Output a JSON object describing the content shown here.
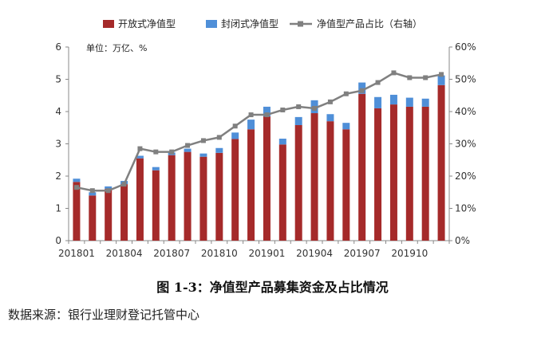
{
  "chart_data": {
    "type": "bar",
    "stacked": true,
    "unit_label": "单位：万亿、%",
    "x": [
      "201801",
      "201802",
      "201803",
      "201804",
      "201805",
      "201806",
      "201807",
      "201808",
      "201809",
      "201810",
      "201811",
      "201812",
      "201901",
      "201902",
      "201903",
      "201904",
      "201905",
      "201906",
      "201907",
      "201908",
      "201909",
      "201910",
      "201911",
      "201912"
    ],
    "xtick_labels": [
      "201801",
      "201804",
      "201807",
      "201810",
      "201901",
      "201904",
      "201907",
      "201910"
    ],
    "series": [
      {
        "name": "开放式净值型",
        "axis": "left",
        "color": "#A52A2A",
        "values": [
          1.82,
          1.4,
          1.6,
          1.75,
          2.55,
          2.18,
          2.65,
          2.75,
          2.6,
          2.72,
          3.15,
          3.45,
          3.85,
          2.98,
          3.58,
          3.95,
          3.7,
          3.45,
          4.55,
          4.1,
          4.22,
          4.15,
          4.15,
          4.82
        ]
      },
      {
        "name": "封闭式净值型",
        "axis": "left",
        "color": "#4F8FD8",
        "values": [
          0.1,
          0.1,
          0.08,
          0.1,
          0.08,
          0.1,
          0.08,
          0.1,
          0.1,
          0.15,
          0.2,
          0.3,
          0.3,
          0.18,
          0.25,
          0.4,
          0.22,
          0.2,
          0.35,
          0.35,
          0.3,
          0.28,
          0.25,
          0.3
        ]
      },
      {
        "name": "净值型产品占比（右轴）",
        "axis": "right",
        "type": "line",
        "color": "#808080",
        "values": [
          16.5,
          15.5,
          15.5,
          17.5,
          28.5,
          27.5,
          27.5,
          29.5,
          31.0,
          32.0,
          35.5,
          39.0,
          39.0,
          40.5,
          41.5,
          41.0,
          43.0,
          45.5,
          46.5,
          49.0,
          52.0,
          50.5,
          50.5,
          51.5
        ]
      }
    ],
    "ylim_left": [
      0,
      6
    ],
    "yticks_left": [
      "0",
      "1",
      "2",
      "3",
      "4",
      "5",
      "6"
    ],
    "ylim_right": [
      0,
      60
    ],
    "yticks_right": [
      "0%",
      "10%",
      "20%",
      "30%",
      "40%",
      "50%",
      "60%"
    ],
    "grid": false,
    "legend_position": "top"
  },
  "caption": "图 1-3：净值型产品募集资金及占比情况",
  "source": "数据来源：银行业理财登记托管中心"
}
